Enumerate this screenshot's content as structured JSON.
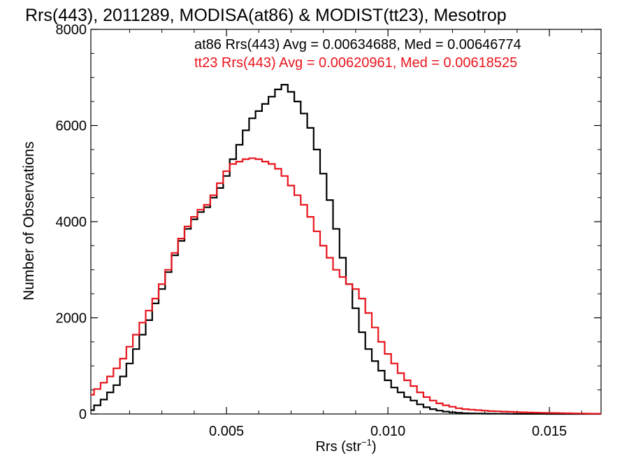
{
  "chart_data": {
    "type": "line",
    "title": "Rrs(443), 2011289, MODISA(at86) & MODIST(tt23), Mesotrop",
    "xlabel_main": "Rrs (str",
    "xlabel_sup": "−1",
    "xlabel_close": ")",
    "ylabel": "Number of Observations",
    "xlim": [
      0.0008,
      0.0166
    ],
    "ylim": [
      0,
      8000
    ],
    "xticks": [
      {
        "value": 0.005,
        "label": "0.005"
      },
      {
        "value": 0.01,
        "label": "0.010"
      },
      {
        "value": 0.015,
        "label": "0.015"
      }
    ],
    "yticks": [
      {
        "value": 0,
        "label": "0"
      },
      {
        "value": 2000,
        "label": "2000"
      },
      {
        "value": 4000,
        "label": "4000"
      },
      {
        "value": 6000,
        "label": "6000"
      },
      {
        "value": 8000,
        "label": "8000"
      }
    ],
    "legend": [
      {
        "text": "at86 Rrs(443) Avg = 0.00634688, Med = 0.00646774",
        "color": "#000000"
      },
      {
        "text": "tt23 Rrs(443) Avg = 0.00620961, Med = 0.00618525",
        "color": "#e8141c"
      }
    ],
    "series": [
      {
        "color": "#000000",
        "x": [
          0.0008,
          0.001,
          0.0012,
          0.0014,
          0.0016,
          0.0018,
          0.002,
          0.0022,
          0.0024,
          0.0026,
          0.0028,
          0.003,
          0.0032,
          0.0034,
          0.0036,
          0.0038,
          0.004,
          0.0042,
          0.0044,
          0.0046,
          0.0048,
          0.005,
          0.0052,
          0.0054,
          0.0056,
          0.0058,
          0.006,
          0.0062,
          0.0064,
          0.0066,
          0.0068,
          0.007,
          0.0072,
          0.0074,
          0.0076,
          0.0078,
          0.008,
          0.0082,
          0.0084,
          0.0086,
          0.0088,
          0.009,
          0.0092,
          0.0094,
          0.0096,
          0.0098,
          0.01,
          0.0102,
          0.0104,
          0.0106,
          0.0108,
          0.011,
          0.0112,
          0.0114,
          0.0116,
          0.0118,
          0.012,
          0.0122,
          0.0124,
          0.0126,
          0.0128,
          0.013,
          0.0132,
          0.0134,
          0.0136,
          0.0138,
          0.014,
          0.0142,
          0.0144,
          0.0146,
          0.0148,
          0.015,
          0.0152,
          0.0154,
          0.0156,
          0.0158,
          0.016,
          0.0162,
          0.0164,
          0.0166
        ],
        "y": [
          80,
          180,
          300,
          450,
          600,
          780,
          1050,
          1350,
          1650,
          1950,
          2300,
          2600,
          2950,
          3300,
          3600,
          3850,
          4050,
          4200,
          4300,
          4500,
          4700,
          4950,
          5300,
          5600,
          5900,
          6150,
          6300,
          6450,
          6600,
          6750,
          6850,
          6700,
          6500,
          6250,
          5950,
          5500,
          5000,
          4450,
          3850,
          3250,
          2700,
          2200,
          1700,
          1350,
          1100,
          900,
          700,
          550,
          450,
          350,
          280,
          200,
          140,
          100,
          70,
          50,
          35,
          25,
          15,
          12,
          10,
          8,
          6,
          5,
          4,
          3,
          2,
          2,
          1,
          1,
          1,
          0,
          0,
          0,
          0,
          0,
          0,
          0,
          0,
          0
        ]
      },
      {
        "color": "#e8141c",
        "x": [
          0.0008,
          0.001,
          0.0012,
          0.0014,
          0.0016,
          0.0018,
          0.002,
          0.0022,
          0.0024,
          0.0026,
          0.0028,
          0.003,
          0.0032,
          0.0034,
          0.0036,
          0.0038,
          0.004,
          0.0042,
          0.0044,
          0.0046,
          0.0048,
          0.005,
          0.0052,
          0.0054,
          0.0056,
          0.0058,
          0.006,
          0.0062,
          0.0064,
          0.0066,
          0.0068,
          0.007,
          0.0072,
          0.0074,
          0.0076,
          0.0078,
          0.008,
          0.0082,
          0.0084,
          0.0086,
          0.0088,
          0.009,
          0.0092,
          0.0094,
          0.0096,
          0.0098,
          0.01,
          0.0102,
          0.0104,
          0.0106,
          0.0108,
          0.011,
          0.0112,
          0.0114,
          0.0116,
          0.0118,
          0.012,
          0.0122,
          0.0124,
          0.0126,
          0.0128,
          0.013,
          0.0132,
          0.0134,
          0.0136,
          0.0138,
          0.014,
          0.0142,
          0.0144,
          0.0146,
          0.0148,
          0.015,
          0.0152,
          0.0154,
          0.0156,
          0.0158,
          0.016,
          0.0162,
          0.0164,
          0.0166
        ],
        "y": [
          400,
          520,
          650,
          780,
          950,
          1150,
          1400,
          1650,
          1900,
          2150,
          2400,
          2700,
          3000,
          3350,
          3650,
          3900,
          4100,
          4250,
          4350,
          4550,
          4800,
          5050,
          5200,
          5250,
          5300,
          5320,
          5300,
          5250,
          5200,
          5100,
          4950,
          4750,
          4550,
          4350,
          4100,
          3800,
          3500,
          3250,
          3000,
          2850,
          2700,
          2600,
          2400,
          2100,
          1800,
          1500,
          1250,
          1050,
          850,
          700,
          580,
          450,
          350,
          280,
          220,
          180,
          150,
          120,
          100,
          90,
          80,
          70,
          60,
          55,
          50,
          45,
          40,
          35,
          30,
          28,
          25,
          22,
          20,
          18,
          15,
          12,
          10,
          8,
          6,
          5
        ]
      }
    ]
  }
}
